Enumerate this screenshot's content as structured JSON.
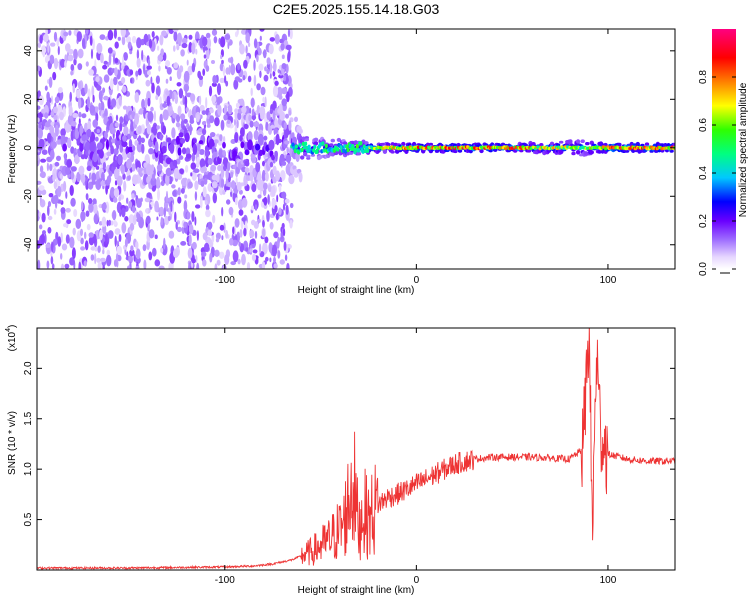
{
  "title": "C2E5.2025.155.14.18.G03",
  "chart_data": [
    {
      "type": "heatmap",
      "xlabel": "Height of straight line (km)",
      "ylabel": "Frequency (Hz)",
      "xlim": [
        -198,
        135
      ],
      "ylim": [
        -50,
        49
      ],
      "xticks": [
        -100,
        0,
        100
      ],
      "xtick_labels": [
        "-100",
        "0",
        "100"
      ],
      "yticks": [
        -40,
        -20,
        0,
        20,
        40
      ],
      "ytick_labels": [
        "-40",
        "-20",
        "0",
        "20",
        "40"
      ],
      "colorbar": {
        "label": "Normalized spectral amplitude",
        "range": [
          0,
          1
        ],
        "ticks": [
          0.0,
          0.2,
          0.4,
          0.6,
          0.8
        ],
        "tick_labels": [
          "0.0",
          "0.2",
          "0.4",
          "0.6",
          "0.8"
        ],
        "colormap": "white-lavender-violet-blue-cyan-green-yellow-orange-red-magenta"
      },
      "description_points": {
        "x": [
          -198,
          -150,
          -100,
          -75,
          -50,
          -35,
          -20,
          0,
          20,
          50,
          88,
          100,
          135
        ],
        "peak_amplitude": [
          0.35,
          0.4,
          0.45,
          0.5,
          0.55,
          0.6,
          0.75,
          0.9,
          0.92,
          0.92,
          0.7,
          0.95,
          0.95
        ],
        "bandwidth_hz": [
          45,
          45,
          30,
          20,
          8,
          6,
          4,
          3,
          3,
          3,
          6,
          3,
          3
        ]
      },
      "grid": false
    },
    {
      "type": "line",
      "xlabel": "Height of straight line (km)",
      "ylabel": "SNR (10 * v/v)",
      "y_multiplier_label": "(x10",
      "y_multiplier_exp": "4",
      "xlim": [
        -198,
        135
      ],
      "ylim": [
        0,
        2.4
      ],
      "xticks": [
        -100,
        0,
        100
      ],
      "xtick_labels": [
        "-100",
        "0",
        "100"
      ],
      "yticks": [
        0.5,
        1.0,
        1.5,
        2.0
      ],
      "ytick_labels": [
        "0.5",
        "1.0",
        "1.5",
        "2.0"
      ],
      "color": "#ee3333",
      "series": [
        {
          "x": [
            -198,
            -150,
            -100,
            -85,
            -75,
            -65,
            -55,
            -45,
            -38,
            -33,
            -30,
            -28,
            -25,
            -20,
            -15,
            -10,
            0,
            10,
            20,
            30,
            40,
            60,
            80,
            87,
            90,
            92,
            94,
            96,
            100,
            110,
            120,
            135
          ],
          "y": [
            0.02,
            0.02,
            0.03,
            0.04,
            0.06,
            0.1,
            0.18,
            0.3,
            0.45,
            0.9,
            0.4,
            0.6,
            0.5,
            0.65,
            0.72,
            0.75,
            0.85,
            0.95,
            1.05,
            1.1,
            1.12,
            1.12,
            1.1,
            1.2,
            2.4,
            0.4,
            2.2,
            1.4,
            1.15,
            1.1,
            1.08,
            1.08
          ]
        }
      ],
      "grid": false
    }
  ]
}
